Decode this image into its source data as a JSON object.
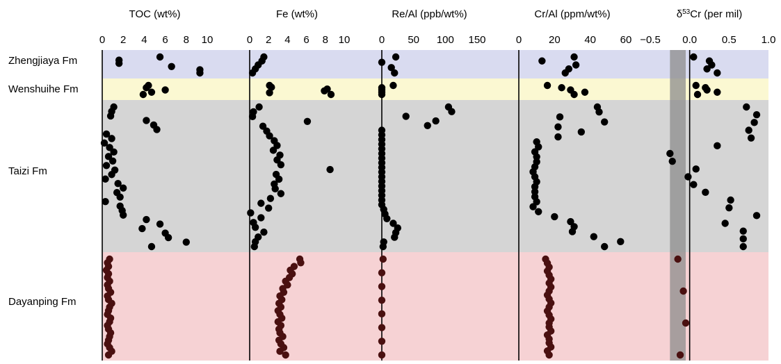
{
  "colors": {
    "zhengjiaya": "#d9dbf0",
    "wenshuihe": "#fbf8d2",
    "taizi": "#d5d5d5",
    "dayanping": "#f6d2d4",
    "dot": "#000000",
    "dot_dayanping": "#4a1010",
    "baseline_band": "#8c8c8c"
  },
  "formations": [
    {
      "name": "Zhengjiaya Fm",
      "color": "#d9dbf0"
    },
    {
      "name": "Wenshuihe Fm",
      "color": "#fbf8d2"
    },
    {
      "name": "Taizi Fm",
      "color": "#d5d5d5"
    },
    {
      "name": "Dayanping Fm",
      "color": "#f6d2d4"
    }
  ],
  "chart_data": [
    {
      "type": "scatter",
      "title": "TOC (wt%)",
      "xlim": [
        0,
        10
      ],
      "ticks": [
        "0",
        "2",
        "4",
        "6",
        "8",
        "10"
      ],
      "tick_values": [
        0,
        2,
        4,
        6,
        8,
        10
      ],
      "grid": false,
      "series": [
        {
          "formation": "Zhengjiaya Fm",
          "x": [
            5.5,
            1.6,
            1.6,
            6.6,
            9.3,
            9.3
          ]
        },
        {
          "formation": "Wenshuihe Fm",
          "x": [
            4.4,
            4.2,
            6.0,
            4.7,
            3.9
          ]
        },
        {
          "formation": "Taizi Fm",
          "x": [
            1.1,
            0.9,
            0.8,
            4.2,
            4.9,
            5.2,
            0.4,
            0.9,
            0.2,
            0.7,
            1.1,
            0.6,
            1.0,
            0.4,
            1.2,
            0.9,
            0.3,
            1.5,
            2.0,
            1.4,
            1.7,
            0.3,
            1.7,
            1.9,
            2.0,
            4.2,
            5.5,
            3.8,
            6.0,
            6.3,
            8.0,
            4.7
          ]
        },
        {
          "formation": "Dayanping Fm",
          "x": [
            0.7,
            0.5,
            0.6,
            0.4,
            0.6,
            0.5,
            0.7,
            0.5,
            0.6,
            0.8,
            0.5,
            0.6,
            0.9,
            0.7,
            0.6,
            0.5,
            0.8,
            0.7,
            0.5,
            0.6,
            0.8,
            0.7,
            0.6,
            0.5,
            0.7,
            0.9,
            0.6
          ]
        }
      ]
    },
    {
      "type": "scatter",
      "title": "Fe (wt%)",
      "xlim": [
        0,
        10
      ],
      "ticks": [
        "0",
        "2",
        "4",
        "6",
        "8",
        "10"
      ],
      "tick_values": [
        0,
        2,
        4,
        6,
        8,
        10
      ],
      "grid": false,
      "series": [
        {
          "formation": "Zhengjiaya Fm",
          "x": [
            1.5,
            1.3,
            0.9,
            0.6,
            0.3
          ]
        },
        {
          "formation": "Wenshuihe Fm",
          "x": [
            2.1,
            2.3,
            8.2,
            7.9,
            2.1,
            8.6
          ]
        },
        {
          "formation": "Taizi Fm",
          "x": [
            1.0,
            0.4,
            0.3,
            6.1,
            1.4,
            1.8,
            2.1,
            2.6,
            2.9,
            2.5,
            3.2,
            2.9,
            3.3,
            8.5,
            2.8,
            3.1,
            2.6,
            2.7,
            3.3,
            2.2,
            1.2,
            2.0,
            0.1,
            1.2,
            0.4,
            0.6,
            1.5,
            0.9,
            0.6,
            0.5
          ]
        },
        {
          "formation": "Dayanping Fm",
          "x": [
            5.3,
            5.4,
            4.7,
            4.3,
            4.5,
            4.2,
            3.8,
            4.0,
            3.5,
            3.6,
            3.2,
            3.4,
            3.1,
            3.3,
            3.0,
            3.2,
            3.4,
            3.0,
            3.3,
            3.1,
            3.2,
            3.5,
            3.1,
            3.3,
            3.6,
            3.2,
            3.8
          ]
        }
      ]
    },
    {
      "type": "scatter",
      "title": "Re/Al (ppb/wt%)",
      "xlim": [
        0,
        150
      ],
      "ticks": [
        "0",
        "50",
        "100",
        "150"
      ],
      "tick_values": [
        0,
        50,
        100,
        150
      ],
      "grid": false,
      "series": [
        {
          "formation": "Zhengjiaya Fm",
          "x": [
            22,
            0,
            15,
            20
          ]
        },
        {
          "formation": "Wenshuihe Fm",
          "x": [
            18,
            0,
            0,
            0,
            0
          ]
        },
        {
          "formation": "Taizi Fm",
          "x": [
            105,
            110,
            38,
            85,
            72,
            0,
            0,
            0,
            0,
            0,
            0,
            0,
            0,
            0,
            0,
            0,
            0,
            0,
            0,
            0,
            0,
            0,
            3,
            5,
            8,
            18,
            25,
            22,
            20,
            3,
            2
          ]
        },
        {
          "formation": "Dayanping Fm",
          "x": [
            2,
            0,
            0,
            0,
            0,
            0,
            0,
            0
          ]
        }
      ]
    },
    {
      "type": "scatter",
      "title": "Cr/Al (ppm/wt%)",
      "xlim": [
        0,
        60
      ],
      "ticks": [
        "0",
        "20",
        "40",
        "60"
      ],
      "tick_values": [
        0,
        20,
        40,
        60
      ],
      "grid": false,
      "series": [
        {
          "formation": "Zhengjiaya Fm",
          "x": [
            31,
            13,
            32,
            28,
            26
          ]
        },
        {
          "formation": "Wenshuihe Fm",
          "x": [
            16,
            24,
            29,
            37,
            31
          ]
        },
        {
          "formation": "Taizi Fm",
          "x": [
            44,
            45,
            23,
            48,
            22,
            35,
            22,
            10,
            11,
            9,
            10,
            10,
            9,
            8,
            9,
            10,
            9,
            9,
            9,
            10,
            8,
            11,
            20,
            29,
            31,
            30,
            42,
            57,
            48
          ]
        },
        {
          "formation": "Dayanping Fm",
          "x": [
            15,
            16,
            17,
            16,
            17,
            18,
            17,
            18,
            17,
            16,
            17,
            18,
            17,
            16,
            17,
            18,
            17,
            17,
            18,
            16,
            17,
            17,
            18,
            16,
            17
          ]
        }
      ]
    },
    {
      "type": "scatter",
      "title": "δ53Cr (per mil)",
      "title_main": "δ",
      "title_sup": "53",
      "title_rest": "Cr (per mil)",
      "xlim": [
        -0.5,
        1.0
      ],
      "ticks": [
        "−0.5",
        "0.0",
        "0.5",
        "1.0"
      ],
      "tick_values": [
        -0.5,
        0.0,
        0.5,
        1.0
      ],
      "grid": false,
      "shaded_band_range": [
        -0.25,
        -0.05
      ],
      "series": [
        {
          "formation": "Zhengjiaya Fm",
          "x": [
            0.05,
            0.25,
            0.28,
            0.22,
            0.35
          ]
        },
        {
          "formation": "Wenshuihe Fm",
          "x": [
            0.08,
            0.2,
            0.22,
            0.35,
            0.1
          ]
        },
        {
          "formation": "Taizi Fm",
          "x": [
            0.72,
            0.85,
            0.82,
            0.75,
            0.78,
            0.35,
            -0.25,
            -0.22,
            0.08,
            -0.02,
            0.05,
            0.2,
            0.52,
            0.5,
            0.85,
            0.45,
            0.68,
            0.68,
            0.68
          ]
        },
        {
          "formation": "Dayanping Fm",
          "x": [
            -0.15,
            -0.08,
            -0.05,
            -0.12
          ]
        }
      ]
    }
  ]
}
